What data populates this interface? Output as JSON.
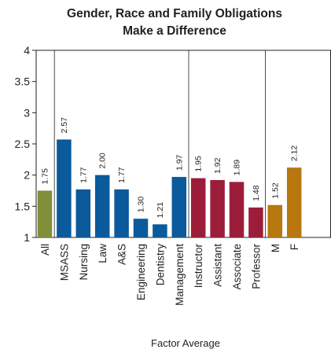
{
  "chart_data": {
    "type": "bar",
    "title": [
      "Gender, Race and Family Obligations",
      "Make a Difference"
    ],
    "xlabel": "Factor Average",
    "ylabel": "",
    "ylim": [
      1,
      4
    ],
    "yticks": [
      1,
      1.5,
      2,
      2.5,
      3,
      3.5,
      4
    ],
    "ytick_labels": [
      "1",
      "1.5",
      "2",
      "2.5",
      "3",
      "3.5",
      "4"
    ],
    "grid": false,
    "groups": [
      {
        "color": "#7f8f3a",
        "bars": [
          {
            "category": "All",
            "value": 1.75,
            "label": "1.75"
          }
        ]
      },
      {
        "color": "#0a5a9c",
        "bars": [
          {
            "category": "MSASS",
            "value": 2.57,
            "label": "2.57"
          },
          {
            "category": "Nursing",
            "value": 1.77,
            "label": "1.77"
          },
          {
            "category": "Law",
            "value": 2.0,
            "label": "2.00"
          },
          {
            "category": "A&S",
            "value": 1.77,
            "label": "1.77"
          },
          {
            "category": "Engineering",
            "value": 1.3,
            "label": "1.30"
          },
          {
            "category": "Dentistry",
            "value": 1.21,
            "label": "1.21"
          },
          {
            "category": "Management",
            "value": 1.97,
            "label": "1.97"
          }
        ]
      },
      {
        "color": "#9c1d3a",
        "bars": [
          {
            "category": "Instructor",
            "value": 1.95,
            "label": "1.95"
          },
          {
            "category": "Assistant",
            "value": 1.92,
            "label": "1.92"
          },
          {
            "category": "Associate",
            "value": 1.89,
            "label": "1.89"
          },
          {
            "category": "Professor",
            "value": 1.48,
            "label": "1.48"
          }
        ]
      },
      {
        "color": "#b8770f",
        "bars": [
          {
            "category": "M",
            "value": 1.52,
            "label": "1.52"
          },
          {
            "category": "F",
            "value": 2.12,
            "label": "2.12"
          }
        ]
      }
    ]
  }
}
